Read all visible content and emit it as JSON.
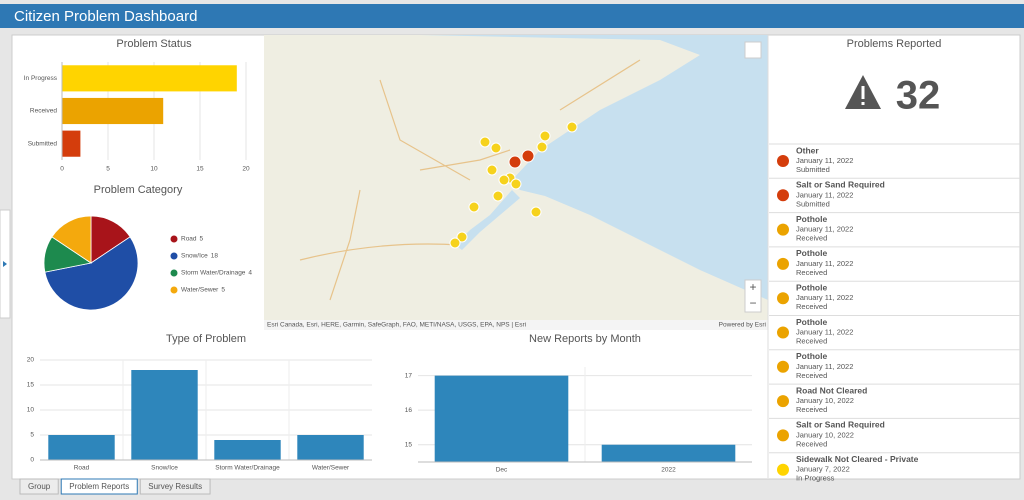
{
  "header": {
    "title": "Citizen Problem Dashboard"
  },
  "status_chart": {
    "type": "bar",
    "title": "Problem Status",
    "categories": [
      "In Progress",
      "Received",
      "Submitted"
    ],
    "values": [
      19,
      11,
      2
    ],
    "colors": [
      "#ffd400",
      "#eba300",
      "#d43d0c"
    ],
    "xlim": [
      0,
      20
    ],
    "xticks": [
      0,
      5,
      10,
      15,
      20
    ],
    "grid": true
  },
  "category_chart": {
    "type": "pie",
    "title": "Problem Category",
    "categories": [
      "Road",
      "Snow/Ice",
      "Storm Water/Drainage",
      "Water/Sewer"
    ],
    "values": [
      5,
      18,
      4,
      5
    ],
    "colors": [
      "#a8141a",
      "#1f4ea6",
      "#1d8a4e",
      "#f4a90d"
    ]
  },
  "type_chart": {
    "type": "bar",
    "title": "Type of Problem",
    "categories": [
      "Road",
      "Snow/Ice",
      "Storm Water/Drainage",
      "Water/Sewer"
    ],
    "values": [
      5,
      18,
      4,
      5
    ],
    "color": "#2e86bb",
    "ylim": [
      0,
      20
    ],
    "yticks": [
      0,
      5,
      10,
      15,
      20
    ],
    "grid": true
  },
  "month_chart": {
    "type": "bar",
    "title": "New Reports by Month",
    "categories": [
      "Dec",
      "2022"
    ],
    "values": [
      17,
      15
    ],
    "color": "#2e86bb",
    "ylim": [
      14.5,
      17.25
    ],
    "yticks": [
      15,
      16,
      17
    ],
    "grid": true
  },
  "map": {
    "attribution": "Esri Canada, Esri, HERE, Garmin, SafeGraph, FAO, METI/NASA, USGS, EPA, NPS | Esri",
    "powered": "Powered by Esri"
  },
  "summary": {
    "title": "Problems Reported",
    "count": 32
  },
  "reports": [
    {
      "title": "Other",
      "date": "January 11, 2022",
      "status": "Submitted",
      "color": "#d43d0c"
    },
    {
      "title": "Salt or Sand Required",
      "date": "January 11, 2022",
      "status": "Submitted",
      "color": "#d43d0c"
    },
    {
      "title": "Pothole",
      "date": "January 11, 2022",
      "status": "Received",
      "color": "#eba300"
    },
    {
      "title": "Pothole",
      "date": "January 11, 2022",
      "status": "Received",
      "color": "#eba300"
    },
    {
      "title": "Pothole",
      "date": "January 11, 2022",
      "status": "Received",
      "color": "#eba300"
    },
    {
      "title": "Pothole",
      "date": "January 11, 2022",
      "status": "Received",
      "color": "#eba300"
    },
    {
      "title": "Pothole",
      "date": "January 11, 2022",
      "status": "Received",
      "color": "#eba300"
    },
    {
      "title": "Road Not Cleared",
      "date": "January 10, 2022",
      "status": "Received",
      "color": "#eba300"
    },
    {
      "title": "Salt or Sand Required",
      "date": "January 10, 2022",
      "status": "Received",
      "color": "#eba300"
    },
    {
      "title": "Sidewalk Not Cleared - Private",
      "date": "January 7, 2022",
      "status": "In Progress",
      "color": "#ffd400"
    }
  ],
  "tabs": [
    "Group",
    "Problem Reports",
    "Survey Results"
  ]
}
